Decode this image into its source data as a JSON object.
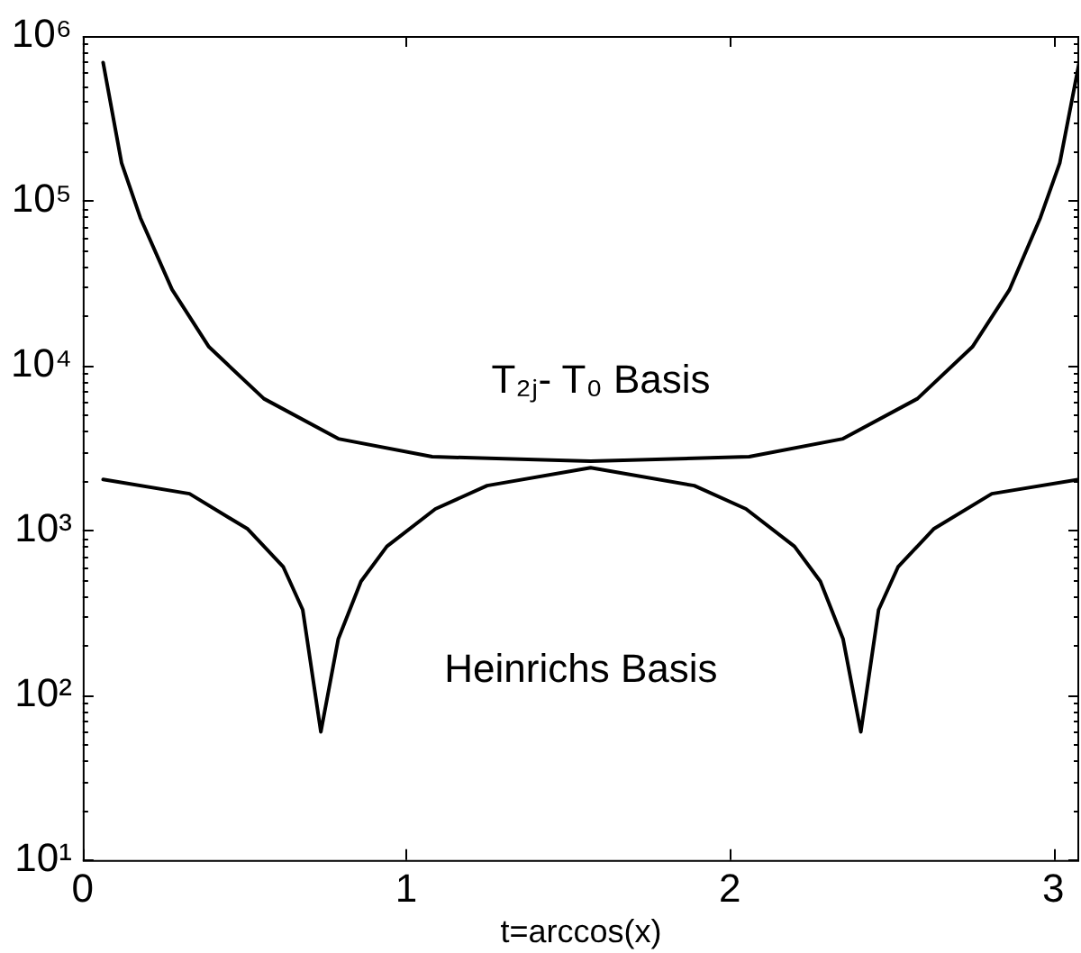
{
  "chart_data": {
    "type": "line",
    "xlabel": "t=arccos(x)",
    "log": "y",
    "grid": false,
    "legend": false,
    "marker": "none",
    "line_style": "solid",
    "xlim": [
      0,
      3.08
    ],
    "xticks": [
      0,
      1,
      2,
      3
    ],
    "ylim": [
      10,
      1000000
    ],
    "yticks": [
      {
        "value": 10,
        "label": "10¹"
      },
      {
        "value": 100,
        "label": "10²"
      },
      {
        "value": 1000,
        "label": "10³"
      },
      {
        "value": 10000,
        "label": "10⁴"
      },
      {
        "value": 100000,
        "label": "10⁵"
      },
      {
        "value": 1000000,
        "label": "10⁶"
      }
    ],
    "series": [
      {
        "name": "T₂ⱼ- T₀ Basis",
        "color": "#000000",
        "x": [
          0.063,
          0.12,
          0.178,
          0.276,
          0.39,
          0.56,
          0.79,
          1.08,
          1.57,
          2.06,
          2.35,
          2.58,
          2.75,
          2.865,
          2.96,
          3.02,
          3.08
        ],
        "values": [
          690000,
          170000,
          79000,
          29000,
          13000,
          6300,
          3600,
          2800,
          2630,
          2800,
          3600,
          6300,
          13000,
          29000,
          79000,
          170000,
          690000
        ]
      },
      {
        "name": "Heinrichs Basis",
        "color": "#000000",
        "x": [
          0.063,
          0.33,
          0.51,
          0.62,
          0.68,
          0.736,
          0.79,
          0.86,
          0.94,
          1.09,
          1.25,
          1.57,
          1.89,
          2.05,
          2.2,
          2.28,
          2.35,
          2.405,
          2.46,
          2.52,
          2.63,
          2.81,
          3.08
        ],
        "values": [
          2040,
          1670,
          1020,
          600,
          330,
          60,
          220,
          490,
          800,
          1350,
          1870,
          2400,
          1870,
          1350,
          800,
          490,
          220,
          60,
          330,
          600,
          1020,
          1670,
          2040
        ]
      }
    ]
  }
}
